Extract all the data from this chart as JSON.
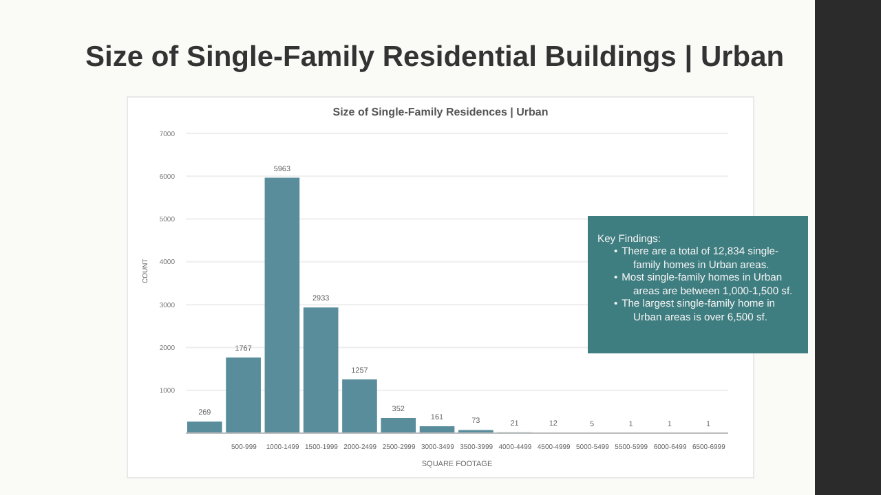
{
  "chart_data": {
    "type": "bar",
    "title": "Size of Single-Family Residential Buildings | Urban",
    "subtitle": "Size of Single-Family Residences | Urban",
    "xlabel": "SQUARE FOOTAGE",
    "ylabel": "COUNT",
    "categories": [
      null,
      "500-999",
      "1000-1499",
      "1500-1999",
      "2000-2499",
      "2500-2999",
      "3000-3499",
      "3500-3999",
      "4000-4499",
      "4500-4999",
      "5000-5499",
      "5500-5999",
      "6000-6499",
      "6500-6999"
    ],
    "values": [
      269,
      1767,
      5963,
      2933,
      1257,
      352,
      161,
      73,
      21,
      12,
      5,
      1,
      1,
      1
    ],
    "color": "#5a8d9c",
    "ylim": [
      0,
      7000
    ],
    "yticks": [
      1000,
      2000,
      3000,
      4000,
      5000,
      6000,
      7000
    ],
    "grid": "y",
    "data_labels": true,
    "annotations": [
      "Key Findings:",
      "•\tThere are a total of 12,834 single-family homes in Urban areas.",
      "•\tMost single-family homes in Urban areas are between 1,000-1,500 sf.",
      "•\tThe largest single-family home in Urban areas is over 6,500 sf."
    ]
  }
}
